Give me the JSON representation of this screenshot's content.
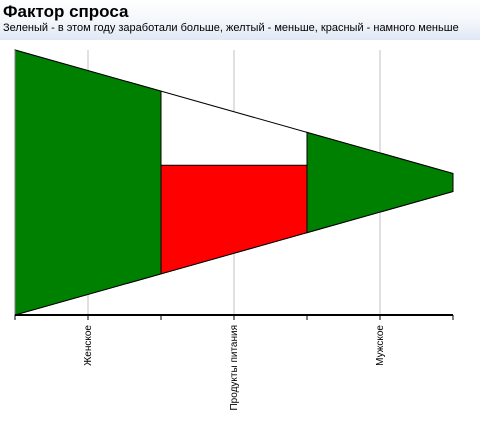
{
  "header": {
    "title": "Фактор спроса",
    "subtitle": "Зеленый - в этом году заработали больше, желтый - меньше, красный - намного меньше"
  },
  "chart_data": {
    "type": "area",
    "categories": [
      "Женское",
      "Продукты питания",
      "Мужское"
    ],
    "series": [
      {
        "values": [
          100,
          74,
          44
        ],
        "status": [
          "больше",
          "намного меньше",
          "больше"
        ],
        "previous_year": [
          100,
          44,
          44
        ]
      }
    ],
    "status_colors": {
      "больше": "#008000",
      "меньше": "#ffff00",
      "намного меньше": "#ff0000"
    },
    "grid": true,
    "legend": "none"
  }
}
